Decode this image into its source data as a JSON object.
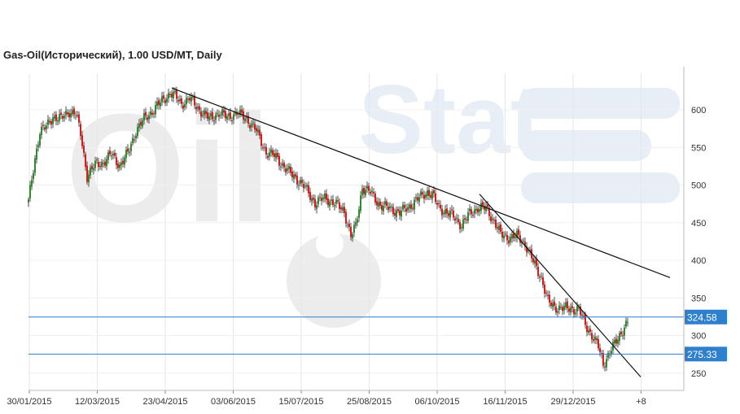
{
  "chart_data": {
    "type": "candlestick",
    "title": "Gas-Oil(Исторический), 1.00 USD/MT, Daily",
    "watermark": [
      "Oil",
      "Stat"
    ],
    "x_tick_labels": [
      "30/01/2015",
      "12/03/2015",
      "23/04/2015",
      "03/06/2015",
      "15/07/2015",
      "25/08/2015",
      "06/10/2015",
      "16/11/2015",
      "29/12/2015",
      "+8"
    ],
    "y_ticks": [
      250,
      300,
      350,
      400,
      450,
      500,
      550,
      600
    ],
    "ylim": [
      225,
      640
    ],
    "xlim": [
      0,
      410
    ],
    "grid": true,
    "price_levels": [
      {
        "label": "324.58",
        "value": 324.58,
        "color": "#2f7fcf"
      },
      {
        "label": "275.33",
        "value": 275.33,
        "color": "#2f7fcf"
      }
    ],
    "trendlines": [
      {
        "from": [
          88,
          629
        ],
        "to": [
          394,
          377
        ]
      },
      {
        "from": [
          277,
          488
        ],
        "to": [
          376,
          245
        ]
      }
    ],
    "close_anchors": [
      [
        0,
        478
      ],
      [
        4,
        535
      ],
      [
        7,
        572
      ],
      [
        11,
        577
      ],
      [
        15,
        591
      ],
      [
        20,
        588
      ],
      [
        25,
        598
      ],
      [
        29,
        595
      ],
      [
        32,
        568
      ],
      [
        36,
        512
      ],
      [
        41,
        527
      ],
      [
        46,
        530
      ],
      [
        51,
        541
      ],
      [
        56,
        526
      ],
      [
        61,
        542
      ],
      [
        66,
        572
      ],
      [
        71,
        588
      ],
      [
        76,
        598
      ],
      [
        82,
        612
      ],
      [
        87,
        622
      ],
      [
        90,
        618
      ],
      [
        94,
        608
      ],
      [
        99,
        615
      ],
      [
        105,
        600
      ],
      [
        111,
        588
      ],
      [
        117,
        596
      ],
      [
        122,
        590
      ],
      [
        128,
        596
      ],
      [
        134,
        588
      ],
      [
        140,
        572
      ],
      [
        146,
        543
      ],
      [
        152,
        538
      ],
      [
        158,
        521
      ],
      [
        164,
        510
      ],
      [
        170,
        496
      ],
      [
        176,
        476
      ],
      [
        182,
        483
      ],
      [
        188,
        476
      ],
      [
        194,
        465
      ],
      [
        198,
        432
      ],
      [
        201,
        445
      ],
      [
        205,
        497
      ],
      [
        210,
        490
      ],
      [
        216,
        473
      ],
      [
        222,
        469
      ],
      [
        228,
        463
      ],
      [
        234,
        472
      ],
      [
        240,
        483
      ],
      [
        245,
        491
      ],
      [
        248,
        487
      ],
      [
        252,
        470
      ],
      [
        256,
        465
      ],
      [
        261,
        458
      ],
      [
        266,
        447
      ],
      [
        271,
        462
      ],
      [
        276,
        470
      ],
      [
        281,
        469
      ],
      [
        286,
        452
      ],
      [
        290,
        434
      ],
      [
        295,
        430
      ],
      [
        300,
        432
      ],
      [
        305,
        422
      ],
      [
        310,
        398
      ],
      [
        315,
        377
      ],
      [
        319,
        345
      ],
      [
        323,
        338
      ],
      [
        328,
        336
      ],
      [
        333,
        336
      ],
      [
        338,
        334
      ],
      [
        342,
        315
      ],
      [
        346,
        300
      ],
      [
        350,
        285
      ],
      [
        353,
        262
      ],
      [
        357,
        278
      ],
      [
        361,
        292
      ],
      [
        365,
        308
      ],
      [
        368,
        318
      ]
    ]
  }
}
